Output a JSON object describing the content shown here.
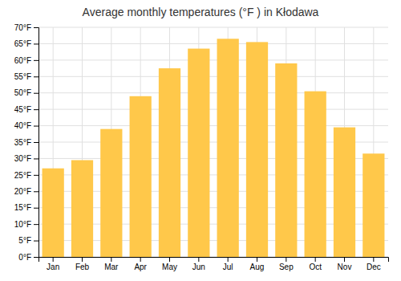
{
  "chart_data": {
    "type": "bar",
    "title": "Average monthly temperatures (°F ) in Kłodawa",
    "categories": [
      "Jan",
      "Feb",
      "Mar",
      "Apr",
      "May",
      "Jun",
      "Jul",
      "Aug",
      "Sep",
      "Oct",
      "Nov",
      "Dec"
    ],
    "values": [
      27.0,
      29.5,
      39.0,
      49.0,
      57.5,
      63.5,
      66.5,
      65.5,
      59.0,
      50.5,
      39.5,
      31.5
    ],
    "color": "#FFC84A",
    "ylim": [
      0,
      70
    ],
    "yticks": [
      {
        "value": 0,
        "label": "0°F"
      },
      {
        "value": 5,
        "label": "5°F"
      },
      {
        "value": 10,
        "label": "10°F"
      },
      {
        "value": 15,
        "label": "15°F"
      },
      {
        "value": 20,
        "label": "20°F"
      },
      {
        "value": 25,
        "label": "25°F"
      },
      {
        "value": 30,
        "label": "30°F"
      },
      {
        "value": 35,
        "label": "35°F"
      },
      {
        "value": 40,
        "label": "40°F"
      },
      {
        "value": 45,
        "label": "45°F"
      },
      {
        "value": 50,
        "label": "50°F"
      },
      {
        "value": 55,
        "label": "55°F"
      },
      {
        "value": 60,
        "label": "60°F"
      },
      {
        "value": 65,
        "label": "65°F"
      },
      {
        "value": 70,
        "label": "70°F"
      }
    ],
    "grid": true
  }
}
